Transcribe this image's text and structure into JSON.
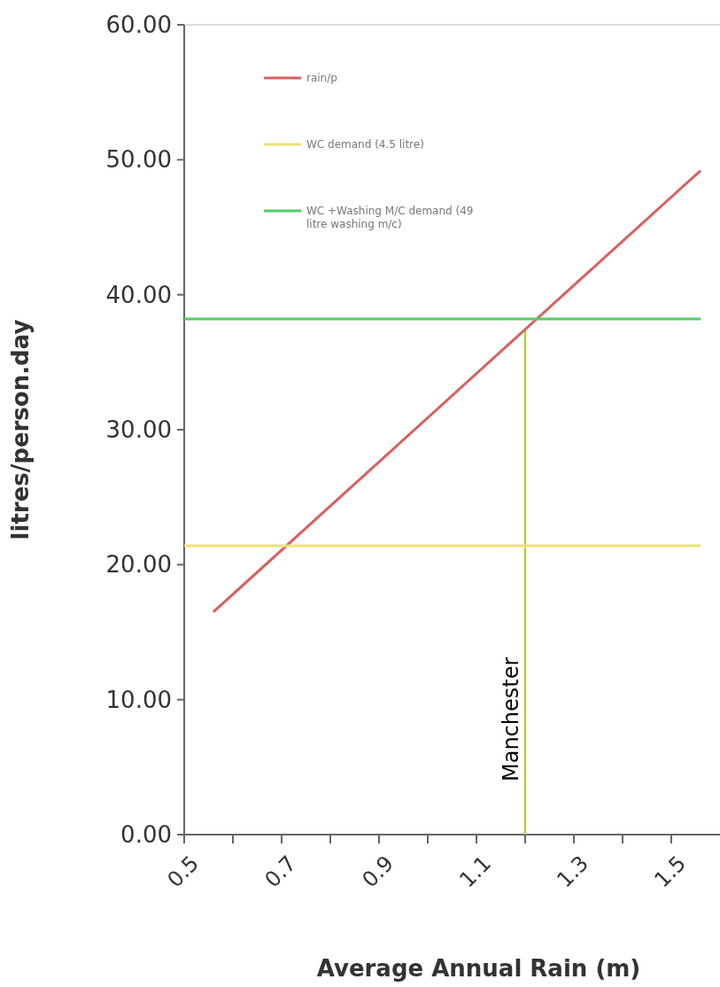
{
  "chart_data": {
    "type": "line",
    "xlabel": "Average Annual Rain (m)",
    "ylabel": "litres/person.day",
    "xlim": [
      0.5,
      1.6
    ],
    "xticks": [
      0.5,
      {
        "value": 0.6,
        "label": null
      },
      0.7,
      {
        "value": 0.8,
        "label": null
      },
      0.9,
      {
        "value": 1.0,
        "label": null
      },
      1.1,
      {
        "value": 1.2,
        "label": null
      },
      1.3,
      {
        "value": 1.4,
        "label": null
      },
      1.5
    ],
    "ylim": [
      0,
      60
    ],
    "yticks": [
      {
        "value": 0,
        "label": "0.00"
      },
      {
        "value": 10,
        "label": "10.00"
      },
      {
        "value": 20,
        "label": "20.00"
      },
      {
        "value": 30,
        "label": "30.00"
      },
      {
        "value": 40,
        "label": "40.00"
      },
      {
        "value": 50,
        "label": "50.00"
      },
      {
        "value": 60,
        "label": "60.00"
      }
    ],
    "series": [
      {
        "name": "rain/p",
        "color": "#d9605e",
        "x": [
          0.56,
          1.56
        ],
        "values": [
          16.5,
          49.2
        ]
      },
      {
        "name": "WC demand (4.5 litre)",
        "color": "#ece27a",
        "x": [
          0.5,
          1.56
        ],
        "values": [
          21.4,
          21.4
        ]
      },
      {
        "name": "WC +Washing M/C demand (49 litre washing m/c)",
        "color": "#55cc66",
        "x": [
          0.5,
          1.56
        ],
        "values": [
          38.2,
          38.2
        ]
      }
    ],
    "ref_lines": [
      {
        "axis": "x",
        "value": 1.2,
        "label": "Manchester",
        "color": "#a8d800"
      }
    ],
    "legend": "top left",
    "grid": false,
    "marker": "none",
    "line_style": "solid"
  }
}
